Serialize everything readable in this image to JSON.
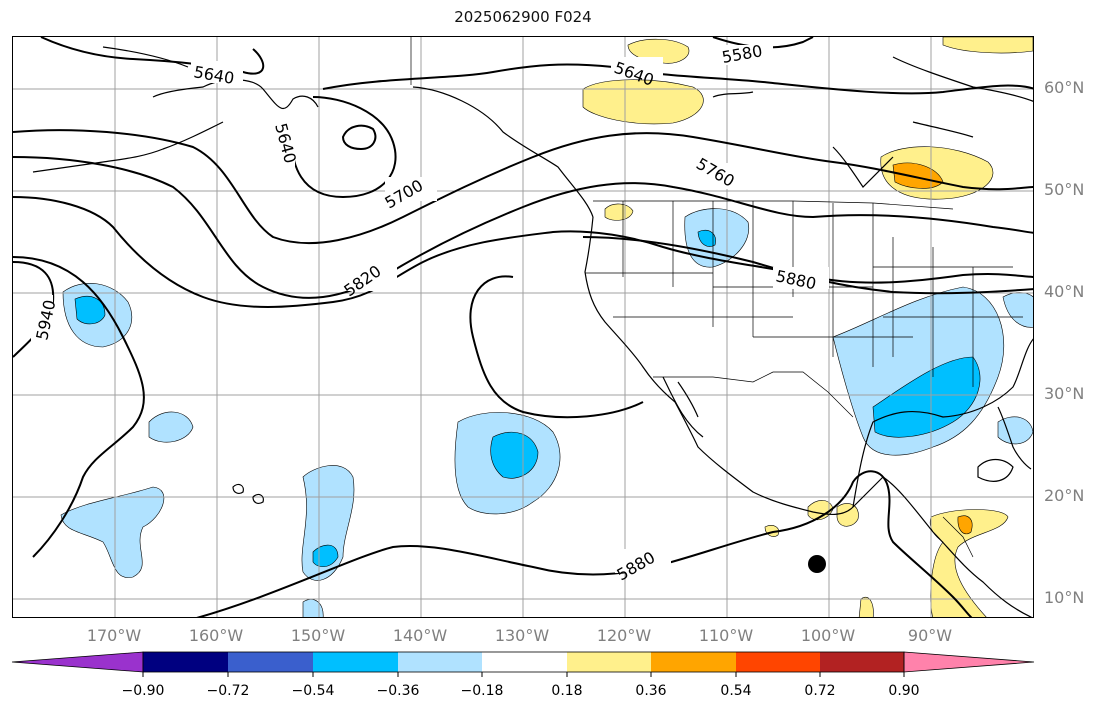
{
  "title": "2025062900 F024",
  "latitude_labels": [
    "60°N",
    "50°N",
    "40°N",
    "30°N",
    "20°N",
    "10°N"
  ],
  "longitude_labels": [
    "170°W",
    "160°W",
    "150°W",
    "140°W",
    "130°W",
    "120°W",
    "110°W",
    "100°W",
    "90°W"
  ],
  "contour_labels": [
    "5640",
    "5640",
    "5640",
    "5580",
    "5700",
    "5760",
    "5820",
    "5880",
    "5880",
    "5940"
  ],
  "colorbar": {
    "ticks": [
      "−0.90",
      "−0.72",
      "−0.54",
      "−0.36",
      "−0.18",
      "0.18",
      "0.36",
      "0.54",
      "0.72",
      "0.90"
    ],
    "colors": [
      "#9a32cd",
      "#000080",
      "#3a5fcd",
      "#00bfff",
      "#b0e2ff",
      "#ffffff",
      "#fff08c",
      "#ffa500",
      "#ff4500",
      "#b22222",
      "#ff82ab"
    ]
  },
  "colors": {
    "contour": "#000000",
    "coast": "#000000",
    "grid": "#a0a0a0",
    "axis_label": "#808080"
  },
  "marker": "filled-circle-marker"
}
